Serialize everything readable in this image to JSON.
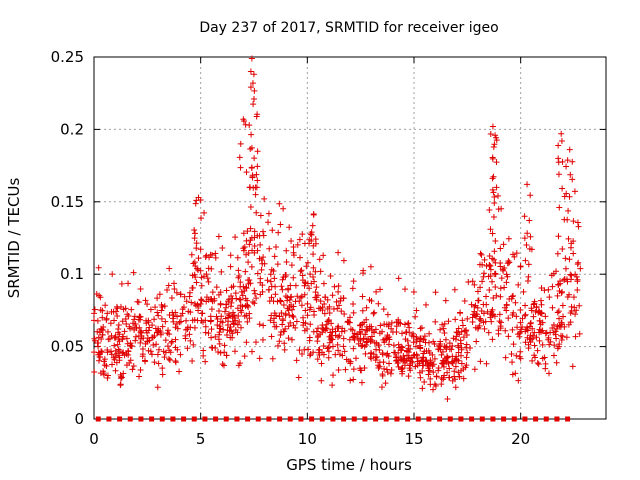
{
  "chart_data": {
    "type": "scatter",
    "title": "Day 237 of 2017, SRMTID for receiver igeo",
    "xlabel": "GPS time / hours",
    "ylabel": "SRMTID / TECUs",
    "xlim": [
      0,
      24
    ],
    "ylim": [
      0,
      0.25
    ],
    "xticks": [
      0,
      5,
      10,
      15,
      20
    ],
    "xtick_labels": [
      "0",
      "5",
      "10",
      "15",
      "20"
    ],
    "yticks": [
      0,
      0.05,
      0.1,
      0.15,
      0.2,
      0.25
    ],
    "ytick_labels": [
      "0",
      "0.05",
      "0.1",
      "0.15",
      "0.2",
      "0.25"
    ],
    "grid": true,
    "marker": "+",
    "color": "#e00000",
    "series": [
      {
        "name": "SRMTID",
        "time_range_hours": [
          0.0,
          22.8
        ],
        "typical_range": [
          0.02,
          0.13
        ],
        "envelope_hours": [
          0,
          1,
          2,
          3,
          4,
          5,
          6,
          7,
          7.5,
          8,
          9,
          10,
          11,
          12,
          13,
          14,
          15,
          16,
          17,
          18,
          18.5,
          19,
          20,
          21,
          22,
          22.8
        ],
        "envelope_median": [
          0.055,
          0.05,
          0.055,
          0.058,
          0.06,
          0.085,
          0.065,
          0.08,
          0.11,
          0.085,
          0.08,
          0.085,
          0.06,
          0.06,
          0.055,
          0.05,
          0.045,
          0.045,
          0.045,
          0.07,
          0.09,
          0.08,
          0.065,
          0.065,
          0.075,
          0.09
        ],
        "peaks": [
          {
            "x": 4.9,
            "y": 0.153
          },
          {
            "x": 7.0,
            "y": 0.207
          },
          {
            "x": 7.4,
            "y": 0.249
          },
          {
            "x": 7.45,
            "y": 0.232
          },
          {
            "x": 7.5,
            "y": 0.221
          },
          {
            "x": 10.3,
            "y": 0.141
          },
          {
            "x": 18.7,
            "y": 0.202
          },
          {
            "x": 18.8,
            "y": 0.196
          },
          {
            "x": 20.3,
            "y": 0.162
          },
          {
            "x": 21.9,
            "y": 0.197
          },
          {
            "x": 22.3,
            "y": 0.186
          }
        ]
      },
      {
        "name": "zero-level markers",
        "y": 0,
        "x_step_hours": 0.5,
        "x_range_hours": [
          0.2,
          22.4
        ]
      }
    ]
  }
}
